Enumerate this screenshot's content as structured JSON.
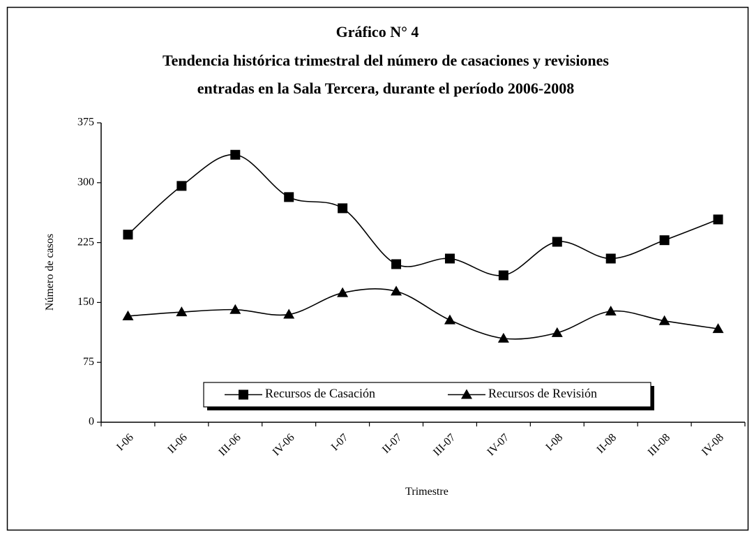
{
  "chart_data": {
    "type": "line",
    "title": "Gráfico N° 4",
    "subtitle": [
      "Tendencia histórica trimestral del número de casaciones y revisiones",
      "entradas en la Sala Tercera, durante el período 2006-2008"
    ],
    "xlabel": "Trimestre",
    "ylabel": "Número de casos",
    "categories": [
      "I-06",
      "II-06",
      "III-06",
      "IV-06",
      "I-07",
      "II-07",
      "III-07",
      "IV-07",
      "I-08",
      "II-08",
      "III-08",
      "IV-08"
    ],
    "series": [
      {
        "name": "Recursos de Casación",
        "color": "#000000",
        "marker": "square",
        "values": [
          235,
          296,
          335,
          282,
          268,
          198,
          205,
          184,
          226,
          205,
          228,
          254
        ]
      },
      {
        "name": "Recursos de Revisión",
        "color": "#000000",
        "marker": "triangle",
        "values": [
          133,
          138,
          141,
          135,
          162,
          164,
          128,
          105,
          112,
          139,
          127,
          117
        ]
      }
    ],
    "ylim": [
      0,
      375
    ],
    "yticks": [
      0,
      75,
      150,
      225,
      300,
      375
    ],
    "smooth": true,
    "legend": "bottom"
  }
}
